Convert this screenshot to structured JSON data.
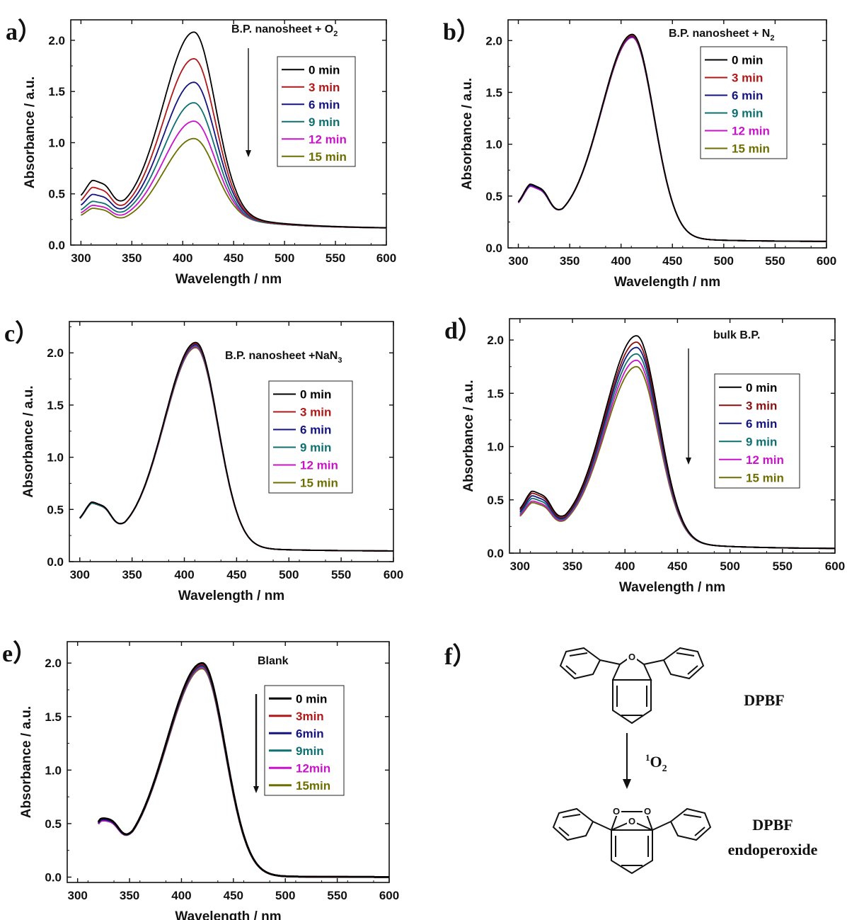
{
  "chart_data": [
    {
      "id": "a",
      "panel_label": "a",
      "type": "line",
      "title_main": "B.P. nanosheet + O",
      "title_sub": "2",
      "xlabel": "Wavelength / nm",
      "ylabel": "Absorbance / a.u.",
      "xlim": [
        290,
        600
      ],
      "ylim": [
        0.0,
        2.2
      ],
      "xticks": [
        300,
        350,
        400,
        450,
        500,
        550,
        600
      ],
      "yticks": [
        0.0,
        0.5,
        1.0,
        1.5,
        2.0
      ],
      "arrow": true,
      "legend_location": "upper-right",
      "series": [
        {
          "name": "0 min",
          "color": "#000000",
          "peak": 2.08,
          "shoulder": 1.0,
          "trough": 0.68,
          "base": 0.27,
          "tail": 0.16
        },
        {
          "name": "3 min",
          "color": "#b01818",
          "peak": 1.82,
          "shoulder": 0.9,
          "trough": 0.62,
          "base": 0.26,
          "tail": 0.16
        },
        {
          "name": "6 min",
          "color": "#141480",
          "peak": 1.59,
          "shoulder": 0.81,
          "trough": 0.58,
          "base": 0.26,
          "tail": 0.16
        },
        {
          "name": "9 min",
          "color": "#0e7070",
          "peak": 1.39,
          "shoulder": 0.72,
          "trough": 0.54,
          "base": 0.25,
          "tail": 0.16
        },
        {
          "name": "12 min",
          "color": "#c814c8",
          "peak": 1.21,
          "shoulder": 0.66,
          "trough": 0.5,
          "base": 0.25,
          "tail": 0.16
        },
        {
          "name": "15 min",
          "color": "#6e6e00",
          "peak": 1.04,
          "shoulder": 0.61,
          "trough": 0.46,
          "base": 0.25,
          "tail": 0.16
        }
      ]
    },
    {
      "id": "b",
      "panel_label": "b",
      "type": "line",
      "title_main": "B.P. nanosheet + N",
      "title_sub": "2",
      "xlabel": "Wavelength / nm",
      "ylabel": "Absorbance / a.u.",
      "xlim": [
        290,
        600
      ],
      "ylim": [
        0.0,
        2.2
      ],
      "xticks": [
        300,
        350,
        400,
        450,
        500,
        550,
        600
      ],
      "yticks": [
        0.0,
        0.5,
        1.0,
        1.5,
        2.0
      ],
      "arrow": false,
      "legend_location": "upper-right",
      "series": [
        {
          "name": "0 min",
          "color": "#000000",
          "peak": 2.06,
          "shoulder": 0.9,
          "trough": 0.53,
          "base": 0.09,
          "tail": 0.06
        },
        {
          "name": "3 min",
          "color": "#b01818",
          "peak": 2.05,
          "shoulder": 0.9,
          "trough": 0.53,
          "base": 0.09,
          "tail": 0.06
        },
        {
          "name": "6 min",
          "color": "#141480",
          "peak": 2.04,
          "shoulder": 0.89,
          "trough": 0.53,
          "base": 0.09,
          "tail": 0.06
        },
        {
          "name": "9 min",
          "color": "#0e7070",
          "peak": 2.04,
          "shoulder": 0.89,
          "trough": 0.53,
          "base": 0.09,
          "tail": 0.06
        },
        {
          "name": "12 min",
          "color": "#c814c8",
          "peak": 2.03,
          "shoulder": 0.88,
          "trough": 0.53,
          "base": 0.09,
          "tail": 0.06
        },
        {
          "name": "15 min",
          "color": "#6e6e00",
          "peak": 2.03,
          "shoulder": 0.88,
          "trough": 0.53,
          "base": 0.09,
          "tail": 0.06
        }
      ]
    },
    {
      "id": "c",
      "panel_label": "c",
      "type": "line",
      "title_main": "B.P. nanosheet +NaN",
      "title_sub": "3",
      "xlabel": "Wavelength / nm",
      "ylabel": "Absorbance / a.u.",
      "xlim": [
        290,
        600
      ],
      "ylim": [
        0.0,
        2.3
      ],
      "xticks": [
        300,
        350,
        400,
        450,
        500,
        550,
        600
      ],
      "yticks": [
        0.0,
        0.5,
        1.0,
        1.5,
        2.0
      ],
      "arrow": false,
      "legend_location": "center-right",
      "series": [
        {
          "name": "0 min",
          "color": "#000000",
          "peak": 2.1,
          "shoulder": 0.85,
          "trough": 0.52,
          "base": 0.13,
          "tail": 0.1
        },
        {
          "name": "3 min",
          "color": "#b01818",
          "peak": 2.09,
          "shoulder": 0.85,
          "trough": 0.52,
          "base": 0.13,
          "tail": 0.1
        },
        {
          "name": "6 min",
          "color": "#141480",
          "peak": 2.08,
          "shoulder": 0.85,
          "trough": 0.52,
          "base": 0.13,
          "tail": 0.1
        },
        {
          "name": "9 min",
          "color": "#0e7070",
          "peak": 2.07,
          "shoulder": 0.84,
          "trough": 0.52,
          "base": 0.13,
          "tail": 0.1
        },
        {
          "name": "12 min",
          "color": "#c814c8",
          "peak": 2.06,
          "shoulder": 0.84,
          "trough": 0.52,
          "base": 0.13,
          "tail": 0.1
        },
        {
          "name": "15 min",
          "color": "#6e6e00",
          "peak": 2.05,
          "shoulder": 0.84,
          "trough": 0.52,
          "base": 0.13,
          "tail": 0.1
        }
      ]
    },
    {
      "id": "d",
      "panel_label": "d",
      "type": "line",
      "title_main": "bulk B.P.",
      "title_sub": "",
      "xlabel": "Wavelength / nm",
      "ylabel": "Absorbance / a.u.",
      "xlim": [
        290,
        600
      ],
      "ylim": [
        0.0,
        2.2
      ],
      "xticks": [
        300,
        350,
        400,
        450,
        500,
        550,
        600
      ],
      "yticks": [
        0.0,
        0.5,
        1.0,
        1.5,
        2.0
      ],
      "arrow": true,
      "legend_location": "center-right",
      "series": [
        {
          "name": "0 min",
          "color": "#000000",
          "peak": 2.04,
          "shoulder": 0.84,
          "trough": 0.48,
          "base": 0.09,
          "tail": 0.04
        },
        {
          "name": "3 min",
          "color": "#8a1010",
          "peak": 1.98,
          "shoulder": 0.81,
          "trough": 0.46,
          "base": 0.09,
          "tail": 0.04
        },
        {
          "name": "6 min",
          "color": "#141480",
          "peak": 1.93,
          "shoulder": 0.78,
          "trough": 0.45,
          "base": 0.09,
          "tail": 0.04
        },
        {
          "name": "9 min",
          "color": "#0e7070",
          "peak": 1.87,
          "shoulder": 0.75,
          "trough": 0.44,
          "base": 0.09,
          "tail": 0.04
        },
        {
          "name": "12 min",
          "color": "#c814c8",
          "peak": 1.81,
          "shoulder": 0.72,
          "trough": 0.43,
          "base": 0.09,
          "tail": 0.04
        },
        {
          "name": "15 min",
          "color": "#6e6e00",
          "peak": 1.75,
          "shoulder": 0.7,
          "trough": 0.42,
          "base": 0.09,
          "tail": 0.04
        }
      ]
    },
    {
      "id": "e",
      "panel_label": "e",
      "type": "line",
      "title_main": "Blank",
      "title_sub": "",
      "xlabel": "Wavelength / nm",
      "ylabel": "Absorbance / a.u.",
      "xlim": [
        290,
        600
      ],
      "ylim": [
        -0.05,
        2.2
      ],
      "xticks": [
        300,
        350,
        400,
        450,
        500,
        550,
        600
      ],
      "yticks": [
        0.0,
        0.5,
        1.0,
        1.5,
        2.0
      ],
      "arrow": true,
      "legend_location": "center-right",
      "series": [
        {
          "name": "0 min",
          "color": "#000000",
          "peak": 2.0,
          "shoulder": 0.72,
          "trough": 0.38,
          "base": 0.01,
          "tail": 0.0
        },
        {
          "name": "3min",
          "color": "#b01818",
          "peak": 1.99,
          "shoulder": 0.72,
          "trough": 0.38,
          "base": 0.01,
          "tail": 0.0
        },
        {
          "name": "6min",
          "color": "#141480",
          "peak": 1.98,
          "shoulder": 0.71,
          "trough": 0.38,
          "base": 0.01,
          "tail": 0.0
        },
        {
          "name": "9min",
          "color": "#0e7070",
          "peak": 1.97,
          "shoulder": 0.71,
          "trough": 0.38,
          "base": 0.01,
          "tail": 0.0
        },
        {
          "name": "12min",
          "color": "#c814c8",
          "peak": 1.96,
          "shoulder": 0.7,
          "trough": 0.38,
          "base": 0.01,
          "tail": 0.0
        },
        {
          "name": "15min",
          "color": "#6e6e00",
          "peak": 1.95,
          "shoulder": 0.7,
          "trough": 0.38,
          "base": 0.01,
          "tail": 0.0
        }
      ]
    }
  ],
  "scheme": {
    "panel_label": "f",
    "top_label": "DPBF",
    "arrow_label_sup": "1",
    "arrow_label_main": "O",
    "arrow_label_sub": "2",
    "bottom_label_line1": "DPBF",
    "bottom_label_line2": "endoperoxide",
    "atom_o": "O"
  }
}
